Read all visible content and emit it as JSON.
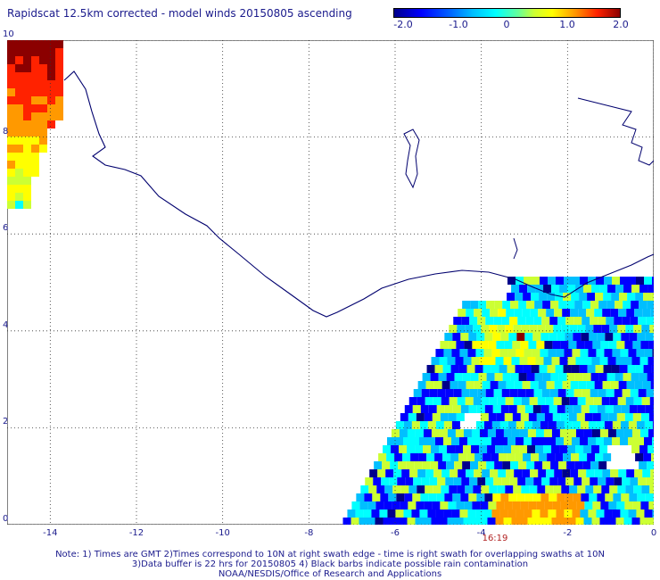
{
  "title": "Rapidscat 12.5km corrected - model winds 20150805 ascending",
  "colorbar": {
    "ticks": [
      "-2.0",
      "-1.0",
      "0",
      "1.0",
      "2.0"
    ],
    "tick_values": [
      -2.0,
      -1.0,
      0,
      1.0,
      2.0
    ],
    "range": [
      -2.0,
      2.0
    ],
    "colors": [
      "#00008b",
      "#0000ff",
      "#00bfff",
      "#00ffff",
      "#ccff33",
      "#ffff00",
      "#ff9900",
      "#ff2200",
      "#8b0000"
    ]
  },
  "map": {
    "x_ticks": [
      "-14",
      "-12",
      "-10",
      "-8",
      "-6",
      "-4",
      "-2",
      "0"
    ],
    "x_tick_values": [
      -14,
      -12,
      -10,
      -8,
      -6,
      -4,
      -2,
      0
    ],
    "y_ticks": [
      "0",
      "2",
      "4",
      "6",
      "8",
      "10"
    ],
    "y_tick_values": [
      0,
      2,
      4,
      6,
      8,
      10
    ],
    "lon_range": [
      -15,
      0
    ],
    "lat_range": [
      0,
      10
    ],
    "grid": "dotted",
    "coastline_color": "#00006e",
    "pass_time": "16:19",
    "pass_time_lon": -3.9
  },
  "notes": [
    "Note: 1) Times are GMT 2)Times correspond to 10N at right swath edge - time is right swath for overlapping swaths at 10N",
    "3)Data buffer is 22 hrs for 20150805 4) Black barbs indicate possible rain contamination",
    "NOAA/NESDIS/Office of Research and Applications"
  ]
}
